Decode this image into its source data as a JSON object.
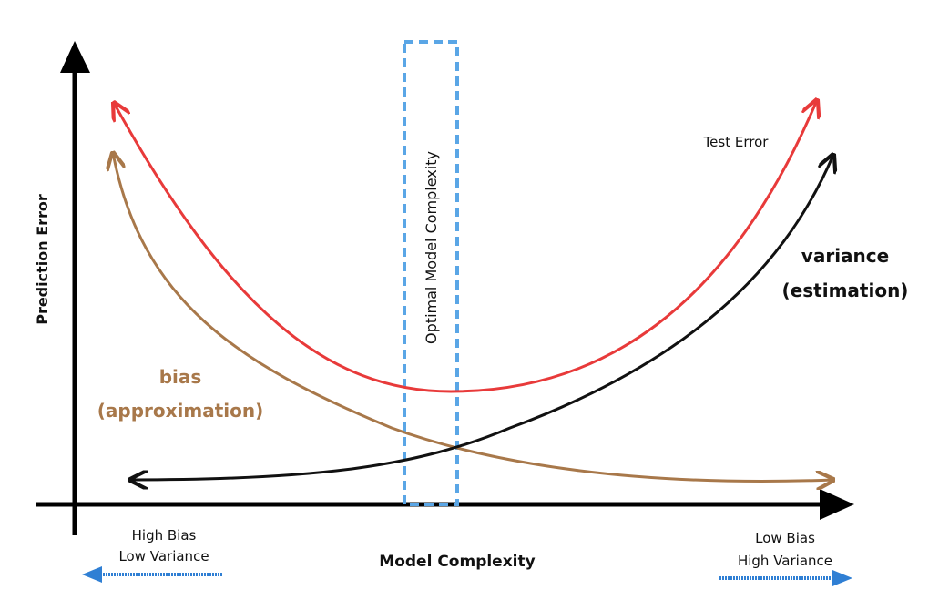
{
  "axes": {
    "x_label": "Model Complexity",
    "y_label": "Prediction Error"
  },
  "labels": {
    "optimal": "Optimal Model Complexity",
    "test_error": "Test Error",
    "variance_line1": "variance",
    "variance_line2": "(estimation)",
    "bias_line1": "bias",
    "bias_line2": "(approximation)",
    "left_note_line1": "High Bias",
    "left_note_line2": "Low Variance",
    "right_note_line1": "Low Bias",
    "right_note_line2": "High Variance"
  },
  "colors": {
    "test_error": "#e83a3a",
    "bias": "#a8784a",
    "variance": "#111111",
    "optimal_box": "#5aa6e6",
    "note_arrow": "#2f7fd4",
    "axis": "#000000"
  }
}
